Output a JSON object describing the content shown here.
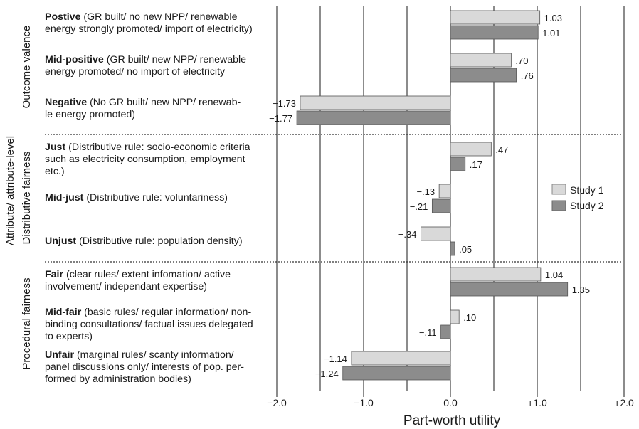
{
  "chart_data": {
    "type": "bar",
    "orientation": "horizontal",
    "xlabel": "Part-worth utility",
    "ylabel": "Attribute/ attribute-level",
    "xlim": [
      -2.0,
      2.0
    ],
    "x_ticks": [
      "−2.0",
      "−1.0",
      "0.0",
      "+1.0",
      "+2.0"
    ],
    "legend_placement": "right",
    "colors": {
      "study1": "#d9d9d9",
      "study2": "#8c8c8c"
    },
    "series": [
      {
        "name": "Study 1",
        "values": [
          1.03,
          0.7,
          -1.73,
          0.47,
          -0.13,
          -0.34,
          1.04,
          0.1,
          -1.14
        ]
      },
      {
        "name": "Study 2",
        "values": [
          1.01,
          0.76,
          -1.77,
          0.17,
          -0.21,
          0.05,
          1.35,
          -0.11,
          -1.24
        ]
      }
    ],
    "value_labels": [
      [
        "1.03",
        "1.01"
      ],
      [
        ".70",
        ".76"
      ],
      [
        "−1.73",
        "−1.77"
      ],
      [
        ".47",
        ".17"
      ],
      [
        "−.13",
        "−.21"
      ],
      [
        "−.34",
        ".05"
      ],
      [
        "1.04",
        "1.35"
      ],
      [
        ".10",
        "−.11"
      ],
      [
        "−1.14",
        "−1.24"
      ]
    ],
    "groups": [
      {
        "name": "Outcome valence",
        "levels": [
          0,
          1,
          2
        ]
      },
      {
        "name": "Distributive fairness",
        "levels": [
          3,
          4,
          5
        ]
      },
      {
        "name": "Procedural fairness",
        "levels": [
          6,
          7,
          8
        ]
      }
    ],
    "categories": [
      {
        "bold": "Postive",
        "lines": [
          " (GR built/ no new NPP/ renewable",
          "energy strongly promoted/ import of electricity)"
        ]
      },
      {
        "bold": "Mid-positive",
        "lines": [
          " (GR built/ new NPP/ renewable",
          "energy promoted/ no import of electricity"
        ]
      },
      {
        "bold": "Negative",
        "lines": [
          " (No GR built/ new NPP/ renewab-",
          "le energy promoted)"
        ]
      },
      {
        "bold": "Just",
        "lines": [
          " (Distributive rule: socio-economic criteria",
          "such as electricity consumption, employment",
          "etc.)"
        ]
      },
      {
        "bold": "Mid-just",
        "lines": [
          " (Distributive rule: voluntariness)"
        ]
      },
      {
        "bold": "Unjust",
        "lines": [
          " (Distributive rule: population density)"
        ]
      },
      {
        "bold": "Fair",
        "lines": [
          " (clear rules/ extent infomation/ active",
          "involvement/ independant expertise)"
        ]
      },
      {
        "bold": "Mid-fair",
        "lines": [
          " (basic rules/ regular information/ non-",
          "binding consultations/ factual issues delegated",
          "to experts)"
        ]
      },
      {
        "bold": "Unfair",
        "lines": [
          " (marginal rules/ scanty information/",
          "panel discussions only/ interests of pop. per-",
          "formed by administration bodies)"
        ]
      }
    ]
  }
}
